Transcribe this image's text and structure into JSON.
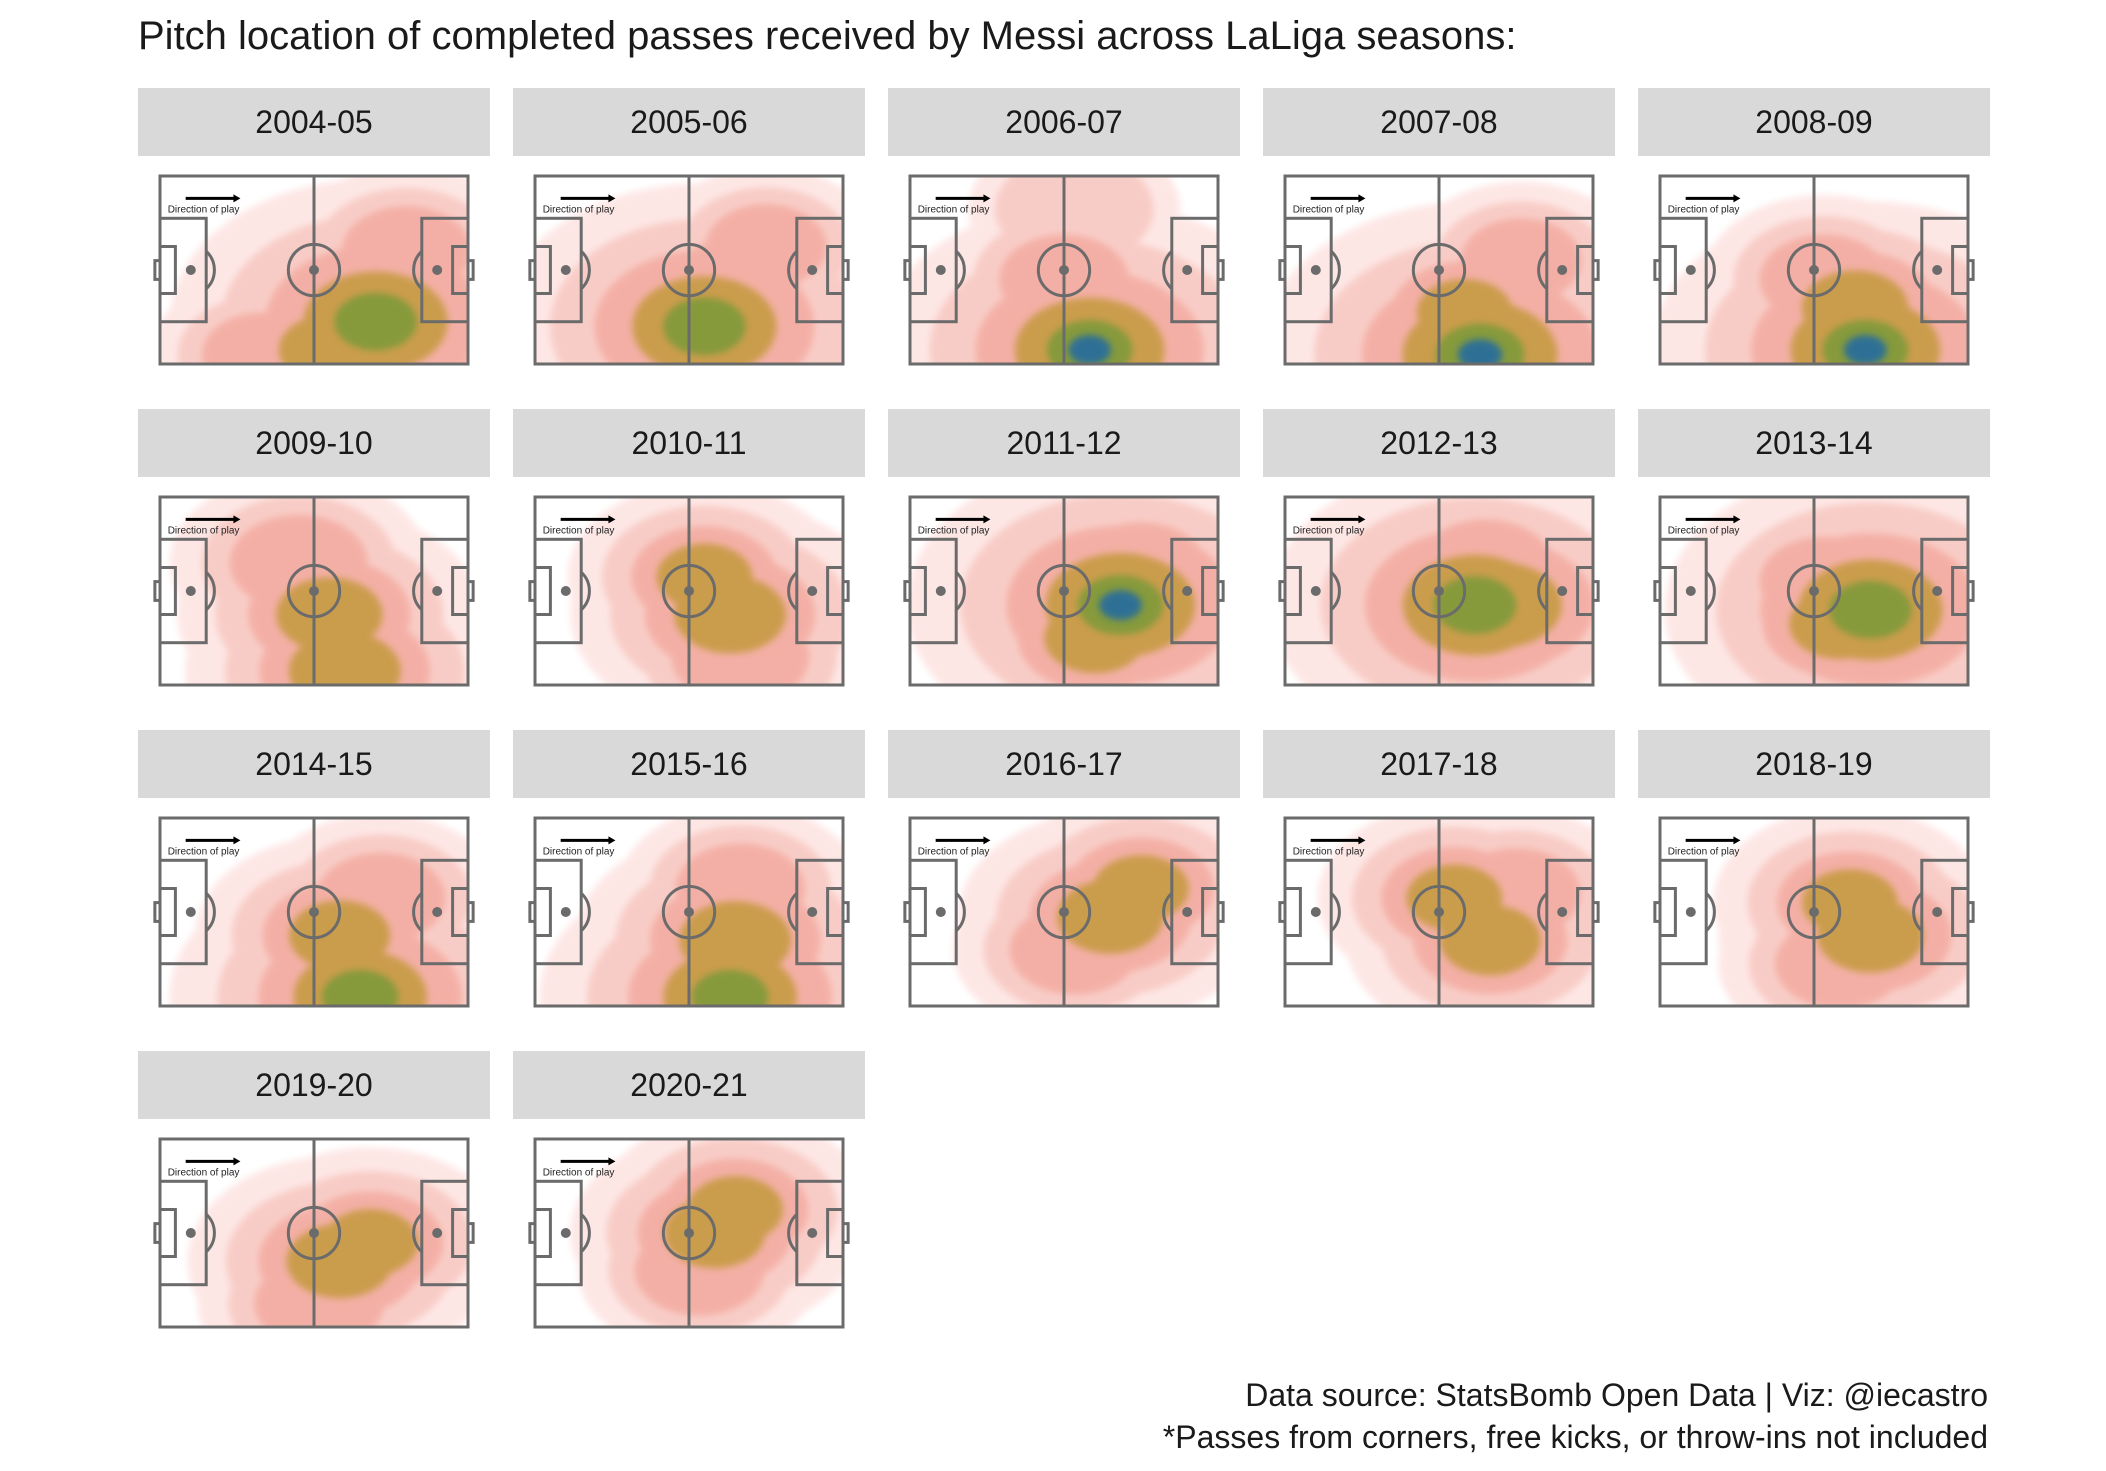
{
  "title": "Pitch location of completed passes received by Messi across LaLiga seasons:",
  "caption": {
    "line1": "Data source: StatsBomb Open Data | Viz: @iecastro",
    "line2": "*Passes from corners, free kicks, or throw-ins not included"
  },
  "colors": {
    "strip_bg": "#d9d9d9",
    "pitch_lines": "#6b6b6b",
    "density_low": "#fde3e1",
    "density_mid": "#f3a99e",
    "density_high": "#c49a3e",
    "density_peak_green": "#7f9a3a",
    "density_peak_blue": "#2b6e9a"
  },
  "chart_data": {
    "type": "heatmap",
    "facet": "season",
    "pitch": {
      "length": 120,
      "width": 80,
      "x_axis": "direction of play (left to right)",
      "y_axis": "pitch width"
    },
    "direction_label": "Direction of play",
    "panels": [
      {
        "season": "2004-05",
        "hotspots": [
          {
            "x": 84,
            "y": 62,
            "weight": 0.9
          },
          {
            "x": 66,
            "y": 74,
            "weight": 0.5
          },
          {
            "x": 40,
            "y": 76,
            "weight": 0.3
          },
          {
            "x": 96,
            "y": 32,
            "weight": 0.35
          }
        ]
      },
      {
        "season": "2005-06",
        "hotspots": [
          {
            "x": 66,
            "y": 64,
            "weight": 0.9
          },
          {
            "x": 76,
            "y": 48,
            "weight": 0.4
          },
          {
            "x": 90,
            "y": 30,
            "weight": 0.3
          }
        ]
      },
      {
        "season": "2006-07",
        "hotspots": [
          {
            "x": 70,
            "y": 74,
            "weight": 0.95
          },
          {
            "x": 60,
            "y": 44,
            "weight": 0.35
          },
          {
            "x": 64,
            "y": 14,
            "weight": 0.25
          }
        ]
      },
      {
        "season": "2007-08",
        "hotspots": [
          {
            "x": 76,
            "y": 76,
            "weight": 1.0
          },
          {
            "x": 70,
            "y": 58,
            "weight": 0.45
          },
          {
            "x": 92,
            "y": 36,
            "weight": 0.3
          }
        ]
      },
      {
        "season": "2008-09",
        "hotspots": [
          {
            "x": 80,
            "y": 74,
            "weight": 0.95
          },
          {
            "x": 76,
            "y": 56,
            "weight": 0.55
          },
          {
            "x": 64,
            "y": 44,
            "weight": 0.35
          }
        ]
      },
      {
        "season": "2009-10",
        "hotspots": [
          {
            "x": 72,
            "y": 74,
            "weight": 0.6
          },
          {
            "x": 66,
            "y": 50,
            "weight": 0.55
          },
          {
            "x": 54,
            "y": 28,
            "weight": 0.4
          }
        ]
      },
      {
        "season": "2010-11",
        "hotspots": [
          {
            "x": 76,
            "y": 50,
            "weight": 0.6
          },
          {
            "x": 66,
            "y": 34,
            "weight": 0.45
          },
          {
            "x": 80,
            "y": 68,
            "weight": 0.4
          }
        ]
      },
      {
        "season": "2011-12",
        "hotspots": [
          {
            "x": 82,
            "y": 46,
            "weight": 0.95
          },
          {
            "x": 72,
            "y": 60,
            "weight": 0.5
          },
          {
            "x": 90,
            "y": 30,
            "weight": 0.35
          }
        ]
      },
      {
        "season": "2012-13",
        "hotspots": [
          {
            "x": 74,
            "y": 46,
            "weight": 0.9
          },
          {
            "x": 84,
            "y": 46,
            "weight": 0.7
          },
          {
            "x": 78,
            "y": 30,
            "weight": 0.4
          }
        ]
      },
      {
        "season": "2013-14",
        "hotspots": [
          {
            "x": 82,
            "y": 48,
            "weight": 0.9
          },
          {
            "x": 70,
            "y": 54,
            "weight": 0.5
          },
          {
            "x": 64,
            "y": 36,
            "weight": 0.35
          }
        ]
      },
      {
        "season": "2014-15",
        "hotspots": [
          {
            "x": 78,
            "y": 76,
            "weight": 0.8
          },
          {
            "x": 70,
            "y": 50,
            "weight": 0.5
          },
          {
            "x": 86,
            "y": 34,
            "weight": 0.35
          }
        ]
      },
      {
        "season": "2015-16",
        "hotspots": [
          {
            "x": 76,
            "y": 76,
            "weight": 0.8
          },
          {
            "x": 78,
            "y": 52,
            "weight": 0.6
          },
          {
            "x": 80,
            "y": 30,
            "weight": 0.35
          }
        ]
      },
      {
        "season": "2016-17",
        "hotspots": [
          {
            "x": 78,
            "y": 42,
            "weight": 0.55
          },
          {
            "x": 90,
            "y": 30,
            "weight": 0.45
          },
          {
            "x": 64,
            "y": 56,
            "weight": 0.35
          }
        ]
      },
      {
        "season": "2017-18",
        "hotspots": [
          {
            "x": 80,
            "y": 52,
            "weight": 0.5
          },
          {
            "x": 66,
            "y": 34,
            "weight": 0.45
          },
          {
            "x": 90,
            "y": 32,
            "weight": 0.35
          }
        ]
      },
      {
        "season": "2018-19",
        "hotspots": [
          {
            "x": 82,
            "y": 50,
            "weight": 0.55
          },
          {
            "x": 74,
            "y": 36,
            "weight": 0.45
          },
          {
            "x": 70,
            "y": 62,
            "weight": 0.35
          }
        ]
      },
      {
        "season": "2019-20",
        "hotspots": [
          {
            "x": 70,
            "y": 52,
            "weight": 0.55
          },
          {
            "x": 82,
            "y": 44,
            "weight": 0.45
          },
          {
            "x": 62,
            "y": 70,
            "weight": 0.35
          }
        ]
      },
      {
        "season": "2020-21",
        "hotspots": [
          {
            "x": 70,
            "y": 40,
            "weight": 0.5
          },
          {
            "x": 78,
            "y": 30,
            "weight": 0.45
          },
          {
            "x": 64,
            "y": 56,
            "weight": 0.35
          }
        ]
      }
    ]
  }
}
